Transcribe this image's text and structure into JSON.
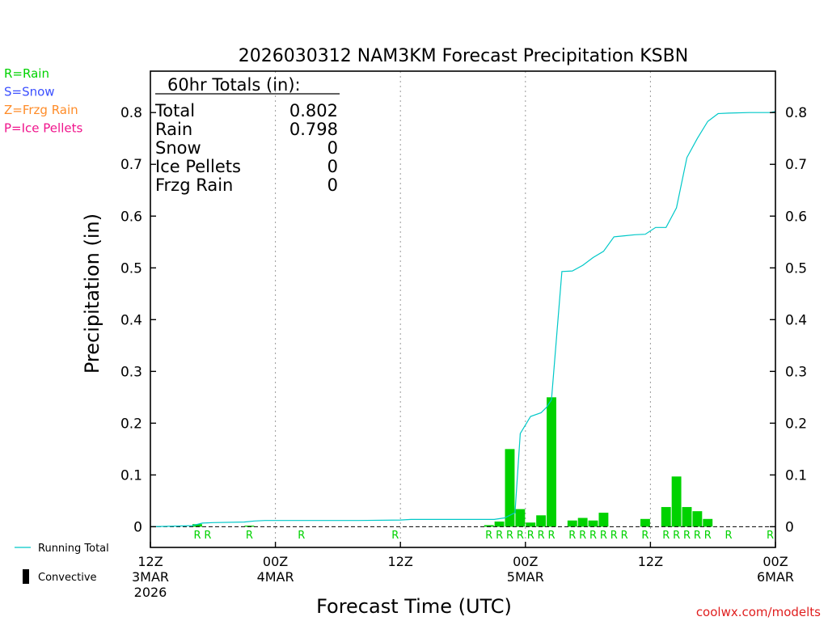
{
  "chart_data": {
    "type": "bar",
    "title": "2026030312 NAM3KM Forecast Precipitation KSBN",
    "xlabel": "Forecast Time (UTC)",
    "ylabel": "Precipitation (in)",
    "ylim": [
      -0.04,
      0.88
    ],
    "xlim_hours": [
      0,
      60
    ],
    "y_ticks": [
      0,
      0.1,
      0.2,
      0.3,
      0.4,
      0.5,
      0.6,
      0.7,
      0.8
    ],
    "y_tick_labels": [
      "0",
      "0.1",
      "0.2",
      "0.3",
      "0.4",
      "0.5",
      "0.6",
      "0.7",
      "0.8"
    ],
    "x_ticks": [
      {
        "hour": 0,
        "lines": [
          "12Z",
          "3MAR",
          "2026"
        ]
      },
      {
        "hour": 12,
        "lines": [
          "00Z",
          "4MAR"
        ]
      },
      {
        "hour": 24,
        "lines": [
          "12Z"
        ]
      },
      {
        "hour": 36,
        "lines": [
          "00Z",
          "5MAR"
        ]
      },
      {
        "hour": 48,
        "lines": [
          "12Z"
        ]
      },
      {
        "hour": 60,
        "lines": [
          "00Z",
          "6MAR"
        ]
      }
    ],
    "gridlines_hours": [
      12,
      24,
      36,
      48
    ],
    "bars": {
      "name": "Hourly Precipitation",
      "color": "#00d200",
      "hours": [
        5,
        10,
        33,
        34,
        35,
        36,
        37,
        38,
        39,
        41,
        42,
        43,
        44,
        48,
        50,
        51,
        52,
        53,
        54
      ],
      "values": [
        0.005,
        0.002,
        0.003,
        0.01,
        0.15,
        0.034,
        0.008,
        0.022,
        0.25,
        0.012,
        0.017,
        0.012,
        0.027,
        0.015,
        0.038,
        0.097,
        0.038,
        0.03,
        0.015
      ]
    },
    "running_total": {
      "name": "Running Total",
      "color": "#00c8c8",
      "hours": [
        0,
        4,
        5,
        6,
        9,
        10,
        11,
        16,
        20,
        24,
        25,
        29,
        33,
        34,
        35,
        35.5,
        36.5,
        37.5,
        38,
        38.5,
        39.5,
        40.5,
        41.5,
        42.5,
        43.5,
        44.5,
        45.5,
        46.5,
        47.5,
        48.5,
        49.5,
        50.5,
        51.5,
        52.5,
        53.5,
        54.5,
        55.5,
        57.5,
        58.5,
        59.5,
        60
      ],
      "values": [
        0,
        0.002,
        0.007,
        0.008,
        0.009,
        0.011,
        0.012,
        0.012,
        0.012,
        0.013,
        0.014,
        0.014,
        0.014,
        0.017,
        0.027,
        0.18,
        0.213,
        0.22,
        0.23,
        0.245,
        0.493,
        0.494,
        0.505,
        0.52,
        0.532,
        0.56,
        0.562,
        0.564,
        0.565,
        0.578,
        0.578,
        0.616,
        0.713,
        0.75,
        0.783,
        0.798,
        0.799,
        0.8,
        0.8,
        0.8,
        0.802
      ]
    },
    "precip_type_markers": {
      "color": "#00d200",
      "items": [
        {
          "hour": 5,
          "label": "R"
        },
        {
          "hour": 6,
          "label": "R"
        },
        {
          "hour": 10,
          "label": "R"
        },
        {
          "hour": 15,
          "label": "R"
        },
        {
          "hour": 24,
          "label": "R"
        },
        {
          "hour": 33,
          "label": "R"
        },
        {
          "hour": 34,
          "label": "R"
        },
        {
          "hour": 35,
          "label": "R"
        },
        {
          "hour": 36,
          "label": "R"
        },
        {
          "hour": 37,
          "label": "R"
        },
        {
          "hour": 38,
          "label": "R"
        },
        {
          "hour": 39,
          "label": "R"
        },
        {
          "hour": 41,
          "label": "R"
        },
        {
          "hour": 42,
          "label": "R"
        },
        {
          "hour": 43,
          "label": "R"
        },
        {
          "hour": 44,
          "label": "R"
        },
        {
          "hour": 45,
          "label": "R"
        },
        {
          "hour": 46,
          "label": "R"
        },
        {
          "hour": 48,
          "label": "R"
        },
        {
          "hour": 50,
          "label": "R"
        },
        {
          "hour": 51,
          "label": "R"
        },
        {
          "hour": 52,
          "label": "R"
        },
        {
          "hour": 53,
          "label": "R"
        },
        {
          "hour": 54,
          "label": "R"
        },
        {
          "hour": 56,
          "label": "R"
        },
        {
          "hour": 60,
          "label": "R"
        }
      ]
    },
    "totals_box": {
      "header": "60hr Totals (in):",
      "rows": [
        {
          "label": "Total",
          "value": "0.802"
        },
        {
          "label": "Rain",
          "value": "0.798"
        },
        {
          "label": "Snow",
          "value": "0"
        },
        {
          "label": "Ice Pellets",
          "value": "0"
        },
        {
          "label": "Frzg Rain",
          "value": "0"
        }
      ]
    },
    "type_legend": [
      {
        "text": "R=Rain",
        "color": "#00d200"
      },
      {
        "text": "S=Snow",
        "color": "#3c50ff"
      },
      {
        "text": "Z=Frzg Rain",
        "color": "#ff8c28"
      },
      {
        "text": "P=Ice Pellets",
        "color": "#f0148c"
      }
    ],
    "line_legend": [
      {
        "text": "Running Total",
        "color": "#00c8c8",
        "kind": "line"
      },
      {
        "text": "Convective",
        "color": "#000000",
        "kind": "bar"
      }
    ],
    "credit": {
      "text": "coolwx.com/modelts",
      "color": "#e01e1e"
    }
  }
}
